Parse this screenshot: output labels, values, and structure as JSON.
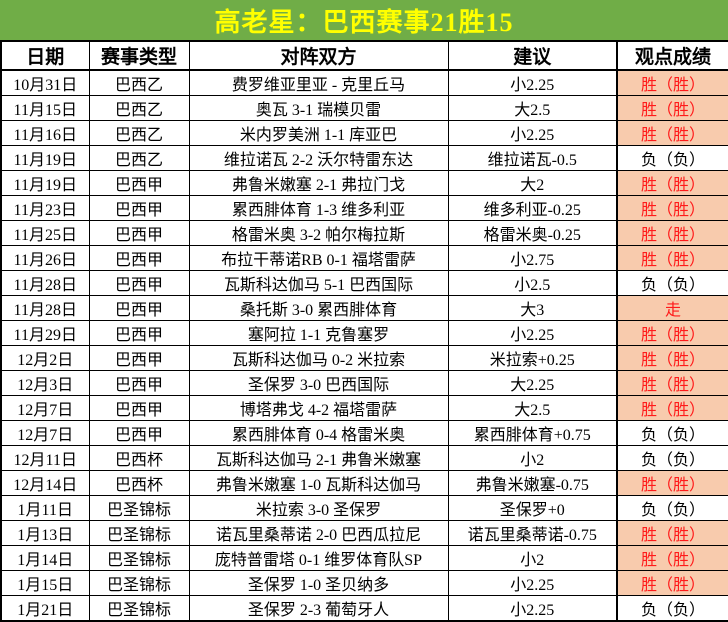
{
  "title": "高老星：巴西赛事21胜15",
  "colors": {
    "title_bg": "#70ad47",
    "title_text": "#ffff00",
    "win_bg": "#f8cbad",
    "win_text": "#ff1a1a",
    "border": "#000000"
  },
  "table": {
    "headers": [
      "日期",
      "赛事类型",
      "对阵双方",
      "建议",
      "观点成绩"
    ],
    "rows": [
      {
        "date": "10月31日",
        "league": "巴西乙",
        "match": "费罗维亚里亚 - 克里丘马",
        "tip": "小2.25",
        "result": "胜（胜）",
        "highlight": true
      },
      {
        "date": "11月15日",
        "league": "巴西乙",
        "match": "奥瓦 3-1 瑞模贝雷",
        "tip": "大2.5",
        "result": "胜（胜）",
        "highlight": true
      },
      {
        "date": "11月16日",
        "league": "巴西乙",
        "match": "米内罗美洲 1-1 库亚巴",
        "tip": "小2.25",
        "result": "胜（胜）",
        "highlight": true
      },
      {
        "date": "11月19日",
        "league": "巴西乙",
        "match": "维拉诺瓦 2-2 沃尔特雷东达",
        "tip": "维拉诺瓦-0.5",
        "result": "负（负）",
        "highlight": false
      },
      {
        "date": "11月19日",
        "league": "巴西甲",
        "match": "弗鲁米嫩塞 2-1 弗拉门戈",
        "tip": "大2",
        "result": "胜（胜）",
        "highlight": true
      },
      {
        "date": "11月23日",
        "league": "巴西甲",
        "match": "累西腓体育 1-3 维多利亚",
        "tip": "维多利亚-0.25",
        "result": "胜（胜）",
        "highlight": true
      },
      {
        "date": "11月25日",
        "league": "巴西甲",
        "match": "格雷米奥 3-2 帕尔梅拉斯",
        "tip": "格雷米奥-0.25",
        "result": "胜（胜）",
        "highlight": true
      },
      {
        "date": "11月26日",
        "league": "巴西甲",
        "match": "布拉干蒂诺RB 0-1 福塔雷萨",
        "tip": "小2.75",
        "result": "胜（胜）",
        "highlight": true
      },
      {
        "date": "11月28日",
        "league": "巴西甲",
        "match": "瓦斯科达伽马 5-1 巴西国际",
        "tip": "小2.5",
        "result": "负（负）",
        "highlight": false
      },
      {
        "date": "11月28日",
        "league": "巴西甲",
        "match": "桑托斯 3-0 累西腓体育",
        "tip": "大3",
        "result": "走",
        "highlight": true
      },
      {
        "date": "11月29日",
        "league": "巴西甲",
        "match": "塞阿拉 1-1 克鲁塞罗",
        "tip": "小2.25",
        "result": "胜（胜）",
        "highlight": true
      },
      {
        "date": "12月2日",
        "league": "巴西甲",
        "match": "瓦斯科达伽马 0-2 米拉索",
        "tip": "米拉索+0.25",
        "result": "胜（胜）",
        "highlight": true
      },
      {
        "date": "12月3日",
        "league": "巴西甲",
        "match": "圣保罗 3-0 巴西国际",
        "tip": "大2.25",
        "result": "胜（胜）",
        "highlight": true
      },
      {
        "date": "12月7日",
        "league": "巴西甲",
        "match": "博塔弗戈 4-2 福塔雷萨",
        "tip": "大2.5",
        "result": "胜（胜）",
        "highlight": true
      },
      {
        "date": "12月7日",
        "league": "巴西甲",
        "match": "累西腓体育 0-4 格雷米奥",
        "tip": "累西腓体育+0.75",
        "result": "负（负）",
        "highlight": false
      },
      {
        "date": "12月11日",
        "league": "巴西杯",
        "match": "瓦斯科达伽马 2-1 弗鲁米嫩塞",
        "tip": "小2",
        "result": "负（负）",
        "highlight": false
      },
      {
        "date": "12月14日",
        "league": "巴西杯",
        "match": "弗鲁米嫩塞 1-0 瓦斯科达伽马",
        "tip": "弗鲁米嫩塞-0.75",
        "result": "胜（胜）",
        "highlight": true
      },
      {
        "date": "1月11日",
        "league": "巴圣锦标",
        "match": "米拉索 3-0 圣保罗",
        "tip": "圣保罗+0",
        "result": "负（负）",
        "highlight": false
      },
      {
        "date": "1月13日",
        "league": "巴圣锦标",
        "match": "诺瓦里桑蒂诺 2-0 巴西瓜拉尼",
        "tip": "诺瓦里桑蒂诺-0.75",
        "result": "胜（胜）",
        "highlight": true
      },
      {
        "date": "1月14日",
        "league": "巴圣锦标",
        "match": "庞特普雷塔 0-1 维罗体育队SP",
        "tip": "小2",
        "result": "胜（胜）",
        "highlight": true
      },
      {
        "date": "1月15日",
        "league": "巴圣锦标",
        "match": "圣保罗 1-0 圣贝纳多",
        "tip": "小2.25",
        "result": "胜（胜）",
        "highlight": true
      },
      {
        "date": "1月21日",
        "league": "巴圣锦标",
        "match": "圣保罗 2-3 葡萄牙人",
        "tip": "小2.25",
        "result": "负（负）",
        "highlight": false
      }
    ]
  }
}
